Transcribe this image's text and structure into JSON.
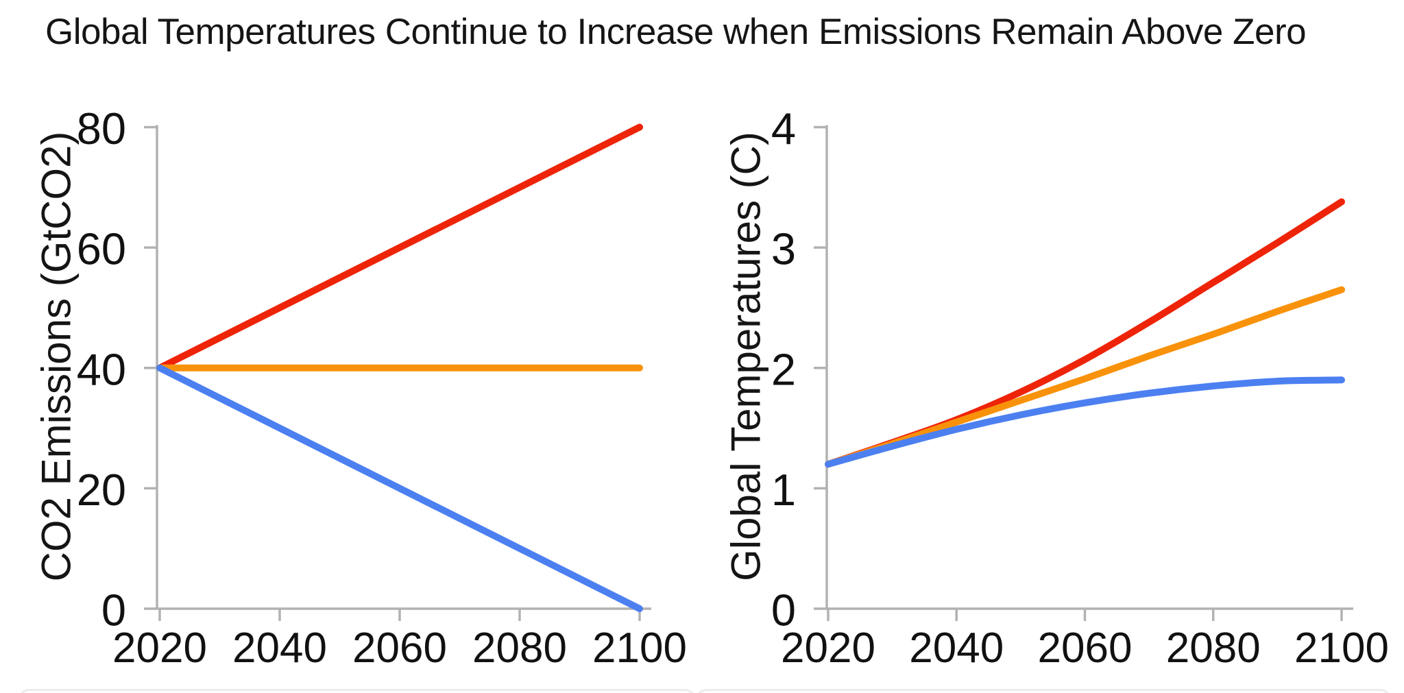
{
  "title": "Global Temperatures Continue to Increase when Emissions Remain Above Zero",
  "colors": {
    "red": "#ee2409",
    "orange": "#f9920b",
    "blue": "#4c80f1",
    "axis": "#b2b2b2",
    "text": "#111111",
    "card_border": "#ececec"
  },
  "chart_data": [
    {
      "type": "line",
      "ylabel": "CO2 Emissions (GtCO2)",
      "xlabel": "",
      "xlim": [
        2020,
        2100
      ],
      "ylim": [
        0,
        80
      ],
      "x_ticks": [
        2020,
        2040,
        2060,
        2080,
        2100
      ],
      "y_ticks": [
        0,
        20,
        40,
        60,
        80
      ],
      "grid": false,
      "legend": "none",
      "series": [
        {
          "name": "red-rising-emissions",
          "color": "#ee2409",
          "x": [
            2020,
            2100
          ],
          "y": [
            40,
            80
          ]
        },
        {
          "name": "orange-constant-emissions",
          "color": "#f9920b",
          "x": [
            2020,
            2100
          ],
          "y": [
            40,
            40
          ]
        },
        {
          "name": "blue-declining-emissions",
          "color": "#4c80f1",
          "x": [
            2020,
            2100
          ],
          "y": [
            40,
            0
          ]
        }
      ]
    },
    {
      "type": "line",
      "ylabel": "Global Temperatures (C)",
      "xlabel": "",
      "xlim": [
        2020,
        2100
      ],
      "ylim": [
        0,
        4
      ],
      "x_ticks": [
        2020,
        2040,
        2060,
        2080,
        2100
      ],
      "y_ticks": [
        0,
        1,
        2,
        3,
        4
      ],
      "grid": false,
      "legend": "none",
      "series": [
        {
          "name": "red-rising-emissions",
          "color": "#ee2409",
          "x": [
            2020,
            2030,
            2040,
            2050,
            2060,
            2070,
            2080,
            2090,
            2100
          ],
          "y": [
            1.2,
            1.38,
            1.57,
            1.8,
            2.07,
            2.38,
            2.71,
            3.04,
            3.38
          ]
        },
        {
          "name": "orange-constant-emissions",
          "color": "#f9920b",
          "x": [
            2020,
            2030,
            2040,
            2050,
            2060,
            2070,
            2080,
            2090,
            2100
          ],
          "y": [
            1.2,
            1.37,
            1.55,
            1.73,
            1.91,
            2.1,
            2.28,
            2.47,
            2.65
          ]
        },
        {
          "name": "blue-declining-emissions",
          "color": "#4c80f1",
          "x": [
            2020,
            2030,
            2040,
            2050,
            2060,
            2070,
            2080,
            2090,
            2100
          ],
          "y": [
            1.2,
            1.35,
            1.49,
            1.61,
            1.71,
            1.79,
            1.85,
            1.89,
            1.9
          ]
        }
      ]
    }
  ]
}
